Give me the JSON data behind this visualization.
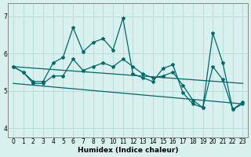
{
  "title": "",
  "xlabel": "Humidex (Indice chaleur)",
  "bg_color": "#d8f0ee",
  "grid_color": "#b8dcd8",
  "line_color": "#006868",
  "spine_color": "#888888",
  "xlim": [
    -0.5,
    23.5
  ],
  "ylim": [
    3.75,
    7.35
  ],
  "yticks": [
    4,
    5,
    6,
    7
  ],
  "xticks": [
    0,
    1,
    2,
    3,
    4,
    5,
    6,
    7,
    8,
    9,
    10,
    11,
    12,
    13,
    14,
    15,
    16,
    17,
    18,
    19,
    20,
    21,
    22,
    23
  ],
  "line1_x": [
    0,
    1,
    2,
    3,
    4,
    5,
    6,
    7,
    8,
    9,
    10,
    11,
    12,
    13,
    14,
    15,
    16,
    17,
    18,
    19,
    20,
    21,
    22,
    23
  ],
  "line1_y": [
    5.65,
    5.5,
    5.25,
    5.25,
    5.75,
    5.9,
    6.7,
    6.05,
    6.3,
    6.4,
    6.1,
    6.95,
    5.45,
    5.35,
    5.25,
    5.6,
    5.7,
    4.95,
    4.65,
    4.55,
    6.55,
    5.75,
    4.5,
    4.7
  ],
  "line2_x": [
    0,
    1,
    2,
    3,
    4,
    5,
    6,
    7,
    8,
    9,
    10,
    11,
    12,
    13,
    14,
    15,
    16,
    17,
    18,
    19,
    20,
    21,
    22,
    23
  ],
  "line2_y": [
    5.65,
    5.5,
    5.2,
    5.2,
    5.4,
    5.4,
    5.85,
    5.55,
    5.65,
    5.75,
    5.65,
    5.85,
    5.65,
    5.45,
    5.35,
    5.4,
    5.5,
    5.15,
    4.75,
    4.55,
    5.65,
    5.3,
    4.5,
    4.65
  ],
  "line3_x": [
    0,
    23
  ],
  "line3_y": [
    5.2,
    4.65
  ],
  "line4_x": [
    0,
    23
  ],
  "line4_y": [
    5.65,
    5.2
  ],
  "tick_fontsize": 5.5,
  "xlabel_fontsize": 6.5,
  "marker_size": 3.0
}
